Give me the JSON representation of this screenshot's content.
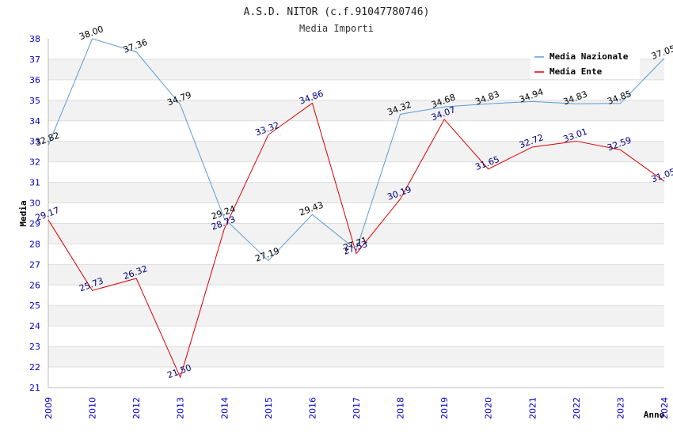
{
  "chart_data": {
    "type": "line",
    "title": "A.S.D. NITOR (c.f.91047780746)",
    "subtitle": "Media Importi",
    "xlabel": "Anno",
    "ylabel": "Media",
    "categories": [
      "2009",
      "2010",
      "2012",
      "2013",
      "2014",
      "2015",
      "2016",
      "2017",
      "2018",
      "2019",
      "2020",
      "2021",
      "2022",
      "2023",
      "2024"
    ],
    "ylim": [
      21,
      38
    ],
    "yticks": [
      "21",
      "22",
      "23",
      "24",
      "25",
      "26",
      "27",
      "28",
      "29",
      "30",
      "31",
      "32",
      "33",
      "34",
      "35",
      "36",
      "37",
      "38"
    ],
    "grid": "horizontal alternating bands",
    "legend_position": "top-right",
    "series": [
      {
        "name": "Media Nazionale",
        "color": "#5b9bd5",
        "values": [
          32.82,
          38.0,
          37.36,
          34.79,
          29.24,
          27.19,
          29.43,
          27.71,
          34.32,
          34.68,
          34.83,
          34.94,
          34.83,
          34.85,
          37.05
        ],
        "labels": [
          "32.82",
          "38.00",
          "37.36",
          "34.79",
          "29.24",
          "27.19",
          "29.43",
          "27.71",
          "34.32",
          "34.68",
          "34.83",
          "34.94",
          "34.83",
          "34.85",
          "37.05"
        ]
      },
      {
        "name": "Media Ente",
        "color": "#dd0000",
        "values": [
          29.17,
          25.73,
          26.32,
          21.5,
          28.73,
          33.32,
          34.86,
          27.53,
          30.19,
          34.07,
          31.65,
          32.72,
          33.01,
          32.59,
          31.05
        ],
        "labels": [
          "29.17",
          "25.73",
          "26.32",
          "21.50",
          "28.73",
          "33.32",
          "34.86",
          "27.53",
          "30.19",
          "34.07",
          "31.65",
          "32.72",
          "33.01",
          "32.59",
          "31.05"
        ]
      }
    ]
  }
}
